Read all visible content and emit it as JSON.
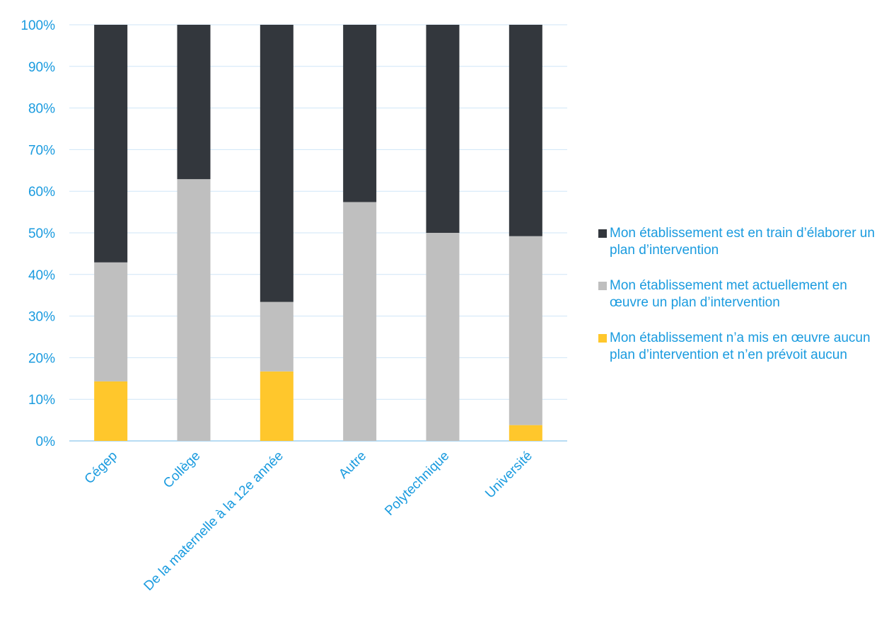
{
  "colors": {
    "text": "#1a9bdf",
    "grid": "#cfe6f7",
    "axis": "#9fd0ef"
  },
  "chart_data": {
    "type": "bar",
    "stacked": true,
    "categories": [
      "Cégep",
      "Collège",
      "De la maternelle à la 12e année",
      "Autre",
      "Polytechnique",
      "Université"
    ],
    "series": [
      {
        "name": "Mon établissement n’a mis en œuvre aucun plan d’intervention et n’en prévoit aucun",
        "color": "#ffc72c",
        "values": [
          14.3,
          0,
          16.7,
          0,
          0,
          3.8
        ]
      },
      {
        "name": "Mon établissement met actuellement en œuvre un plan d’intervention",
        "color": "#bfbfbf",
        "values": [
          28.6,
          62.9,
          16.7,
          57.4,
          50.0,
          45.4
        ]
      },
      {
        "name": "Mon établissement est en train d’élaborer un plan d’intervention",
        "color": "#33373d",
        "values": [
          57.1,
          37.1,
          66.6,
          42.6,
          50.0,
          50.8
        ]
      }
    ],
    "yticks": [
      "0%",
      "10%",
      "20%",
      "30%",
      "40%",
      "50%",
      "60%",
      "70%",
      "80%",
      "90%",
      "100%"
    ],
    "ylim": [
      0,
      100
    ],
    "grid": true,
    "legend_position": "right",
    "legend_order": [
      {
        "label": "Mon établissement est en train d’élaborer un plan d’intervention",
        "color": "#33373d"
      },
      {
        "label": "Mon établissement met actuellement en œuvre un plan d’intervention",
        "color": "#bfbfbf"
      },
      {
        "label": "Mon établissement n’a mis en œuvre aucun plan d’intervention et n’en prévoit aucun",
        "color": "#ffc72c"
      }
    ]
  }
}
